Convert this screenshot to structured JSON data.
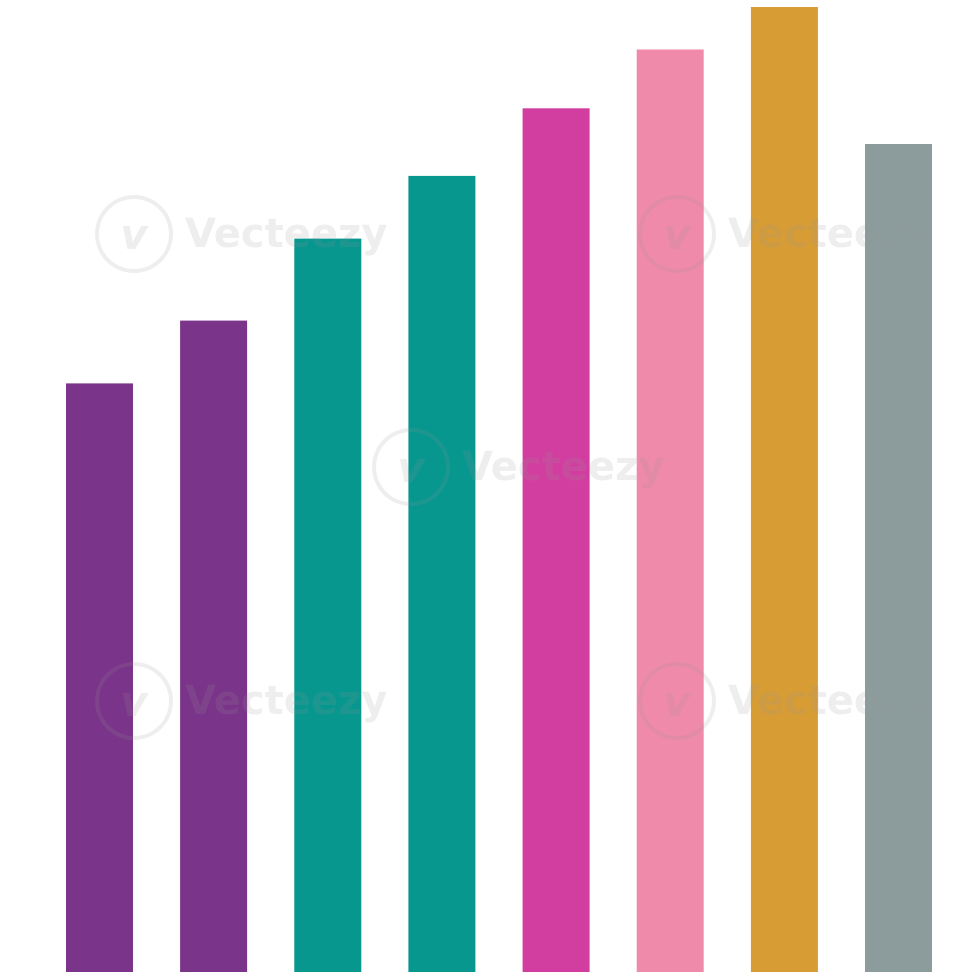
{
  "chart_data": {
    "type": "bar",
    "categories": [
      "",
      "",
      "",
      "",
      "",
      "",
      "",
      ""
    ],
    "values": [
      61,
      67.5,
      76,
      82.5,
      89.5,
      95.6,
      100,
      85.8
    ],
    "ylim": [
      0,
      100
    ],
    "title": "",
    "xlabel": "",
    "ylabel": "",
    "grid": false,
    "legend": "none",
    "bar_colors": [
      "#7a3489",
      "#7a3489",
      "#08978f",
      "#08978f",
      "#d23ea0",
      "#f08aaa",
      "#d89c34",
      "#8c9c9d"
    ]
  },
  "watermark": {
    "text": "Vecteezy",
    "logo": "v-logo-icon"
  }
}
